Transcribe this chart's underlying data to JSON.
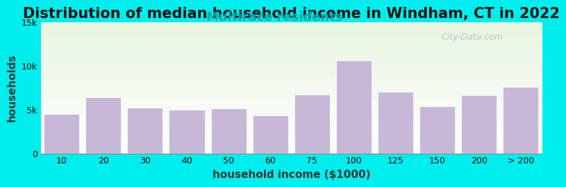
{
  "title": "Distribution of median household income in Windham, CT in 2022",
  "subtitle": "Multirace residents",
  "xlabel": "household income ($1000)",
  "ylabel": "households",
  "background_outer": "#00EEEE",
  "background_inner_top": "#e8f5e0",
  "background_inner_bottom": "#ffffff",
  "bar_color": "#c8b8d8",
  "bar_edge_color": "#ffffff",
  "categories": [
    "10",
    "20",
    "30",
    "40",
    "50",
    "60",
    "75",
    "100",
    "125",
    "150",
    "200",
    "> 200"
  ],
  "values": [
    4500,
    6400,
    5200,
    5000,
    5100,
    4300,
    6700,
    10600,
    7000,
    5400,
    6600,
    7600
  ],
  "ylim": [
    0,
    15000
  ],
  "yticks": [
    0,
    5000,
    10000,
    15000
  ],
  "ytick_labels": [
    "0",
    "5k",
    "10k",
    "15k"
  ],
  "title_fontsize": 15,
  "subtitle_fontsize": 13,
  "subtitle_color": "#00aaaa",
  "axis_label_fontsize": 11,
  "watermark_text": "City-Data.com",
  "watermark_color": "#aaaaaa"
}
